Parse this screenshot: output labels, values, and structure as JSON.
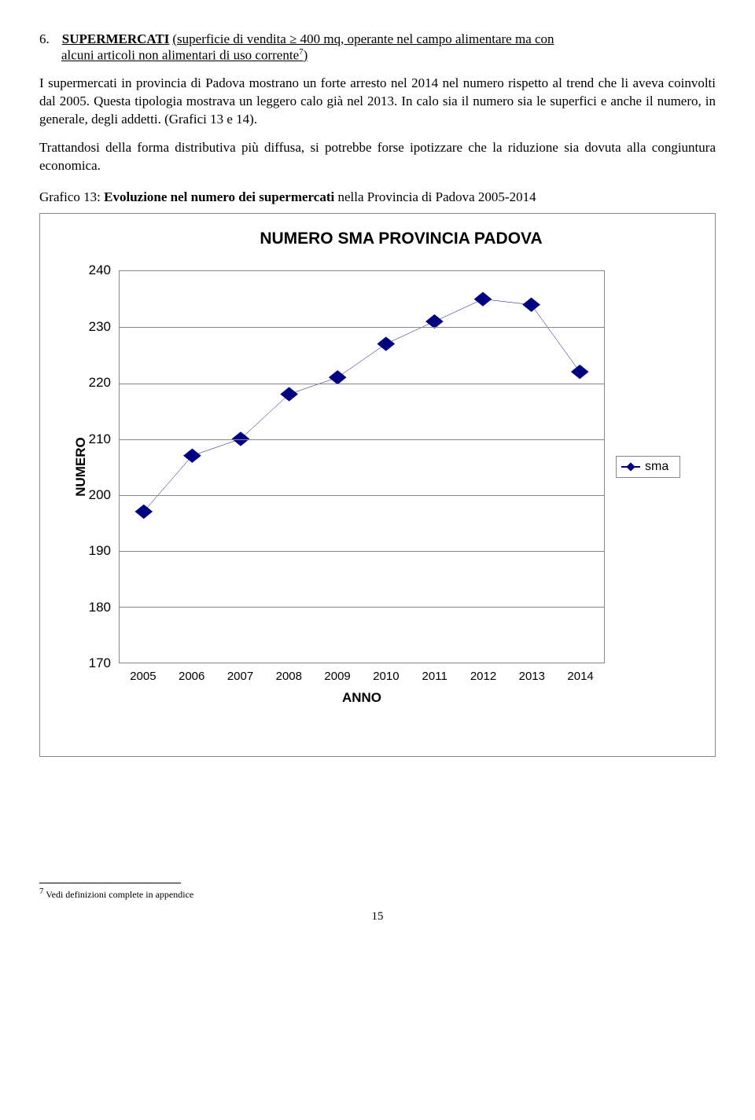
{
  "heading": {
    "number": "6.",
    "title": "SUPERMERCATI",
    "rest_line1": "  (superficie di vendita ≥ 400 mq, operante nel campo alimentare ma con",
    "line2": "alcuni articoli non alimentari di uso corrente",
    "sup": "7",
    "close": ")"
  },
  "paragraphs": {
    "p1": "I supermercati in provincia di Padova mostrano un forte arresto nel 2014 nel numero rispetto al trend che li aveva coinvolti dal 2005. Questa tipologia mostrava un leggero calo già nel 2013. In calo sia il numero sia le superfici e anche il numero, in generale, degli addetti. (Grafici 13 e 14).",
    "p2": "Trattandosi della forma distributiva più diffusa, si potrebbe forse ipotizzare che la riduzione sia dovuta alla congiuntura economica.",
    "caption_pre": "Grafico 13: ",
    "caption_bold": "Evoluzione nel numero dei supermercati ",
    "caption_post": "nella Provincia di Padova 2005-2014"
  },
  "chart": {
    "title": "NUMERO SMA PROVINCIA PADOVA",
    "yaxis_label": "NUMERO",
    "xaxis_label": "ANNO",
    "ylim": [
      170,
      240
    ],
    "yticks": [
      170,
      180,
      190,
      200,
      210,
      220,
      230,
      240
    ],
    "categories": [
      "2005",
      "2006",
      "2007",
      "2008",
      "2009",
      "2010",
      "2011",
      "2012",
      "2013",
      "2014"
    ],
    "values": [
      197,
      207,
      210,
      218,
      221,
      227,
      231,
      235,
      234,
      222
    ],
    "line_color": "#000080",
    "marker_fill": "#000080",
    "grid_color": "#888888",
    "legend_label": "sma"
  },
  "footnote": {
    "num": "7",
    "text": " Vedi definizioni complete in appendice"
  },
  "page_number": "15"
}
